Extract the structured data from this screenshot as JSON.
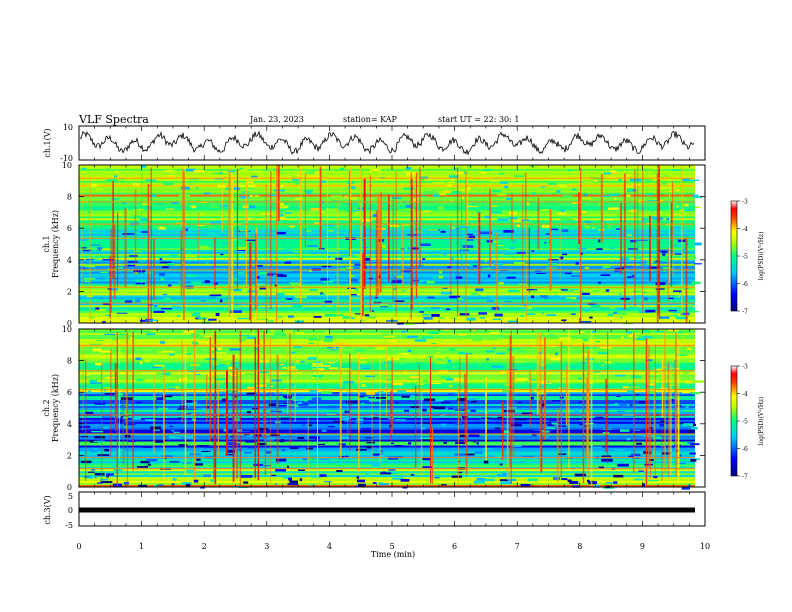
{
  "header": {
    "title": "VLF Spectra",
    "date": "Jan. 23, 2023",
    "station": "station= KAP",
    "start": "start  UT =  22: 30: 1"
  },
  "chart_data": [
    {
      "type": "line",
      "ylabel": "ch.1(V)",
      "ylim": [
        -10,
        10
      ],
      "y_ticks": [
        "10",
        "-10"
      ],
      "description_series": "waveform oscillating roughly between -6 and 6 V"
    },
    {
      "type": "heatmap",
      "ylabel": "ch.1\nFrequency (kHz)",
      "ylabel_line1": "ch.1",
      "ylabel_line2": "Frequency (kHz)",
      "ylim": [
        0,
        10
      ],
      "y_ticks": [
        "0",
        "2",
        "4",
        "6",
        "8",
        "10"
      ],
      "colorbar": {
        "label": "log(PSD)(V²/Hz)",
        "ticks": [
          "-3",
          "-4",
          "-5",
          "-6",
          "-7"
        ],
        "range": [
          -7,
          -3
        ]
      }
    },
    {
      "type": "heatmap",
      "ylabel_line1": "ch.2",
      "ylabel_line2": "Frequency (kHz)",
      "ylim": [
        0,
        10
      ],
      "y_ticks": [
        "0",
        "2",
        "4",
        "6",
        "8",
        "10"
      ],
      "colorbar": {
        "label": "log(PSD)(V²/Hz)",
        "ticks": [
          "-3",
          "-4",
          "-5",
          "-6",
          "-7"
        ],
        "range": [
          -7,
          -3
        ]
      }
    },
    {
      "type": "line",
      "ylabel": "ch.3(V)",
      "ylim": [
        -5,
        5
      ],
      "y_ticks": [
        "5",
        "0",
        "-5"
      ],
      "constant_value": -0.3
    }
  ],
  "xaxis": {
    "label": "Time (min)",
    "range": [
      0,
      10
    ],
    "ticks": [
      "0",
      "1",
      "2",
      "3",
      "4",
      "5",
      "6",
      "7",
      "8",
      "9",
      "10"
    ]
  },
  "colors": {
    "colormap": [
      "#000080",
      "#0000ff",
      "#00c0ff",
      "#00ff80",
      "#80ff00",
      "#ffff00",
      "#ff8000",
      "#ff0000",
      "#ffffff"
    ]
  }
}
